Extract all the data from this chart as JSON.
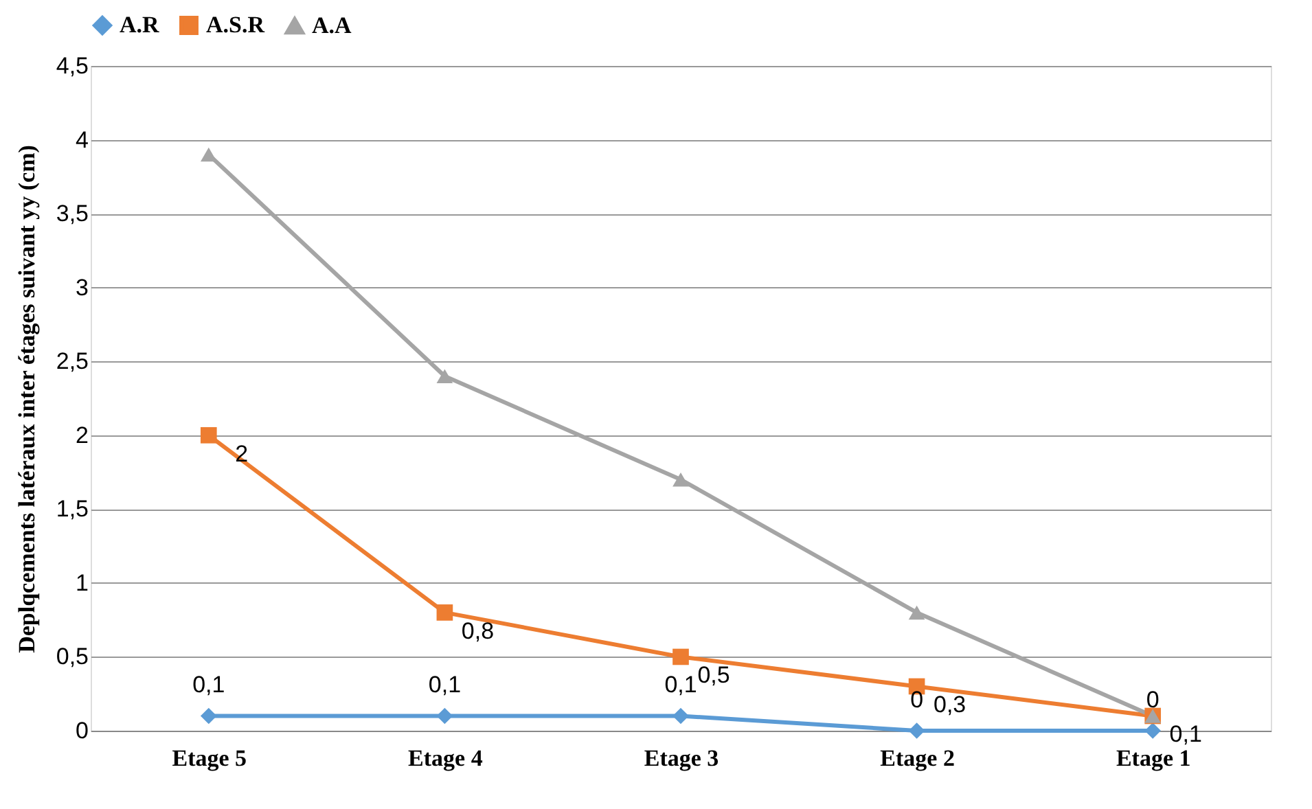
{
  "chart_data": {
    "type": "line",
    "ylabel": "Deplqcements latéraux inter étages suivant yy (cm)",
    "categories": [
      "Etage 5",
      "Etage 4",
      "Etage 3",
      "Etage 2",
      "Etage 1"
    ],
    "series": [
      {
        "name": "A.R",
        "color": "#5b9bd5",
        "marker": "diamond",
        "values": [
          0.1,
          0.1,
          0.1,
          0,
          0
        ],
        "value_labels": [
          "0,1",
          "0,1",
          "0,1",
          "0",
          "0"
        ]
      },
      {
        "name": "A.S.R",
        "color": "#ed7d31",
        "marker": "square",
        "values": [
          2,
          0.8,
          0.5,
          0.3,
          0.1
        ],
        "value_labels": [
          "2",
          "0,8",
          "0,5",
          "0,3",
          "0,1"
        ]
      },
      {
        "name": "A.A",
        "color": "#a5a5a5",
        "marker": "triangle",
        "values": [
          3.9,
          2.4,
          1.7,
          0.8,
          0.1
        ]
      }
    ],
    "ylim": [
      0,
      4.5
    ],
    "yticks": [
      0,
      {
        "value": 0.5,
        "label": "0,5"
      },
      1,
      {
        "value": 1.5,
        "label": "1,5"
      },
      2,
      {
        "value": 2.5,
        "label": "2,5"
      },
      3,
      {
        "value": 3.5,
        "label": "3,5"
      },
      4,
      {
        "value": 4.5,
        "label": "4,5"
      }
    ],
    "grid": "y",
    "legend": "top"
  }
}
